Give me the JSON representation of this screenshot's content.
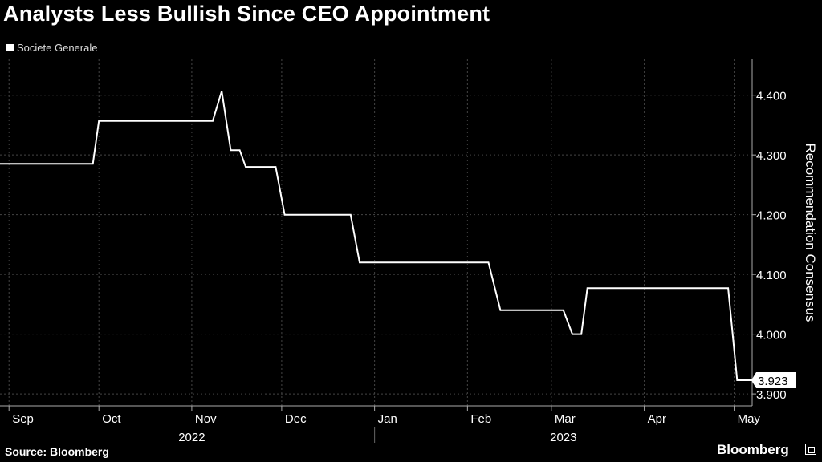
{
  "header": {
    "title": "Analysts Less Bullish Since CEO Appointment"
  },
  "footer": {
    "source": "Source: Bloomberg",
    "brand": "Bloomberg"
  },
  "colors": {
    "background": "#000000",
    "line": "#ffffff",
    "grid": "#444444",
    "axis": "#aaaaaa"
  },
  "chart_data": {
    "type": "line",
    "title": "Analysts Less Bullish Since CEO Appointment",
    "ylabel": "Recommendation Consensus",
    "xlabel": "",
    "ylim": [
      3.88,
      4.46
    ],
    "xlim": [
      "2022-08-29",
      "2023-05-07"
    ],
    "y_axis_side": "right",
    "y_ticks": [
      3.9,
      4.0,
      4.1,
      4.2,
      4.3,
      4.4
    ],
    "y_tick_labels": [
      "3.900",
      "4.000",
      "4.100",
      "4.200",
      "4.300",
      "4.400"
    ],
    "x_tick_labels": [
      {
        "label": "Sep",
        "x": "2022-09-01"
      },
      {
        "label": "Oct",
        "x": "2022-10-01"
      },
      {
        "label": "Nov",
        "x": "2022-11-01"
      },
      {
        "label": "Dec",
        "x": "2022-12-01"
      },
      {
        "label": "Jan",
        "x": "2023-01-01"
      },
      {
        "label": "Feb",
        "x": "2023-02-01"
      },
      {
        "label": "Mar",
        "x": "2023-03-01"
      },
      {
        "label": "Apr",
        "x": "2023-04-01"
      },
      {
        "label": "May",
        "x": "2023-05-01"
      }
    ],
    "year_labels": [
      {
        "label": "2022",
        "from": "2022-09-01",
        "to": "2023-01-01"
      },
      {
        "label": "2023",
        "from": "2023-01-01",
        "to": "2023-05-07"
      }
    ],
    "grid": true,
    "legend": "top-left",
    "series": [
      {
        "name": "Societe Generale",
        "color": "#ffffff",
        "points": [
          [
            "2022-08-29",
            4.285
          ],
          [
            "2022-09-29",
            4.285
          ],
          [
            "2022-10-01",
            4.357
          ],
          [
            "2022-11-08",
            4.357
          ],
          [
            "2022-11-11",
            4.407
          ],
          [
            "2022-11-14",
            4.308
          ],
          [
            "2022-11-17",
            4.308
          ],
          [
            "2022-11-19",
            4.28
          ],
          [
            "2022-11-29",
            4.28
          ],
          [
            "2022-12-02",
            4.2
          ],
          [
            "2022-12-24",
            4.2
          ],
          [
            "2022-12-27",
            4.12
          ],
          [
            "2023-02-08",
            4.12
          ],
          [
            "2023-02-12",
            4.04
          ],
          [
            "2023-03-05",
            4.04
          ],
          [
            "2023-03-08",
            4.0
          ],
          [
            "2023-03-11",
            4.0
          ],
          [
            "2023-03-13",
            4.077
          ],
          [
            "2023-04-29",
            4.077
          ],
          [
            "2023-05-02",
            3.923
          ],
          [
            "2023-05-14",
            3.923
          ]
        ]
      }
    ],
    "last_value_label": "3.923"
  }
}
